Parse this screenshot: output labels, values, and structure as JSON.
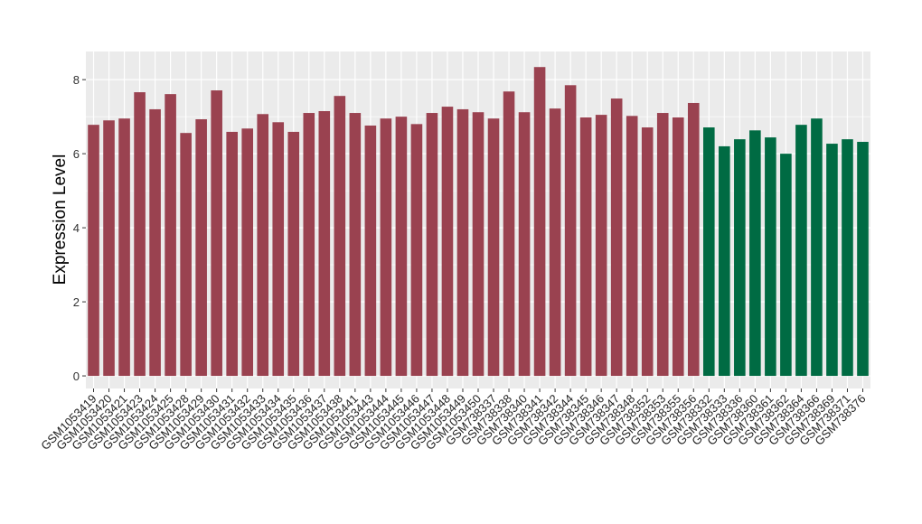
{
  "chart_data": {
    "type": "bar",
    "ylabel": "Expression Level",
    "categories": [
      "GSM1053419",
      "GSM1053420",
      "GSM1053421",
      "GSM1053423",
      "GSM1053424",
      "GSM1053425",
      "GSM1053428",
      "GSM1053429",
      "GSM1053430",
      "GSM1053431",
      "GSM1053432",
      "GSM1053433",
      "GSM1053434",
      "GSM1053435",
      "GSM1053436",
      "GSM1053437",
      "GSM1053438",
      "GSM1053441",
      "GSM1053443",
      "GSM1053444",
      "GSM1053445",
      "GSM1053446",
      "GSM1053447",
      "GSM1053448",
      "GSM1053449",
      "GSM1053450",
      "GSM738337",
      "GSM738338",
      "GSM738340",
      "GSM738341",
      "GSM738342",
      "GSM738344",
      "GSM738345",
      "GSM738346",
      "GSM738347",
      "GSM738348",
      "GSM738352",
      "GSM738353",
      "GSM738355",
      "GSM738356",
      "GSM738332",
      "GSM738333",
      "GSM738336",
      "GSM738360",
      "GSM738361",
      "GSM738362",
      "GSM738364",
      "GSM738366",
      "GSM738369",
      "GSM738371",
      "GSM738376"
    ],
    "values": [
      6.78,
      6.9,
      6.95,
      7.66,
      7.2,
      7.61,
      6.56,
      6.93,
      7.71,
      6.59,
      6.68,
      7.07,
      6.85,
      6.59,
      7.1,
      7.15,
      7.56,
      7.1,
      6.76,
      6.95,
      7.0,
      6.8,
      7.1,
      7.27,
      7.2,
      7.12,
      6.95,
      7.68,
      7.12,
      8.34,
      7.22,
      7.85,
      6.98,
      7.05,
      7.49,
      7.02,
      6.71,
      7.1,
      6.98,
      7.37,
      6.71,
      6.2,
      6.39,
      6.63,
      6.44,
      6.0,
      6.78,
      6.95,
      6.27,
      6.39,
      6.32
    ],
    "colors": [
      "#9a4250",
      "#9a4250",
      "#9a4250",
      "#9a4250",
      "#9a4250",
      "#9a4250",
      "#9a4250",
      "#9a4250",
      "#9a4250",
      "#9a4250",
      "#9a4250",
      "#9a4250",
      "#9a4250",
      "#9a4250",
      "#9a4250",
      "#9a4250",
      "#9a4250",
      "#9a4250",
      "#9a4250",
      "#9a4250",
      "#9a4250",
      "#9a4250",
      "#9a4250",
      "#9a4250",
      "#9a4250",
      "#9a4250",
      "#9a4250",
      "#9a4250",
      "#9a4250",
      "#9a4250",
      "#9a4250",
      "#9a4250",
      "#9a4250",
      "#9a4250",
      "#9a4250",
      "#9a4250",
      "#9a4250",
      "#9a4250",
      "#9a4250",
      "#9a4250",
      "#006b43",
      "#006b43",
      "#006b43",
      "#006b43",
      "#006b43",
      "#006b43",
      "#006b43",
      "#006b43",
      "#006b43",
      "#006b43",
      "#006b43"
    ],
    "ylim": [
      -0.34,
      8.76
    ],
    "yticks": [
      0,
      2,
      4,
      6,
      8
    ],
    "grid": true,
    "panel_color": "#ebebeb"
  }
}
